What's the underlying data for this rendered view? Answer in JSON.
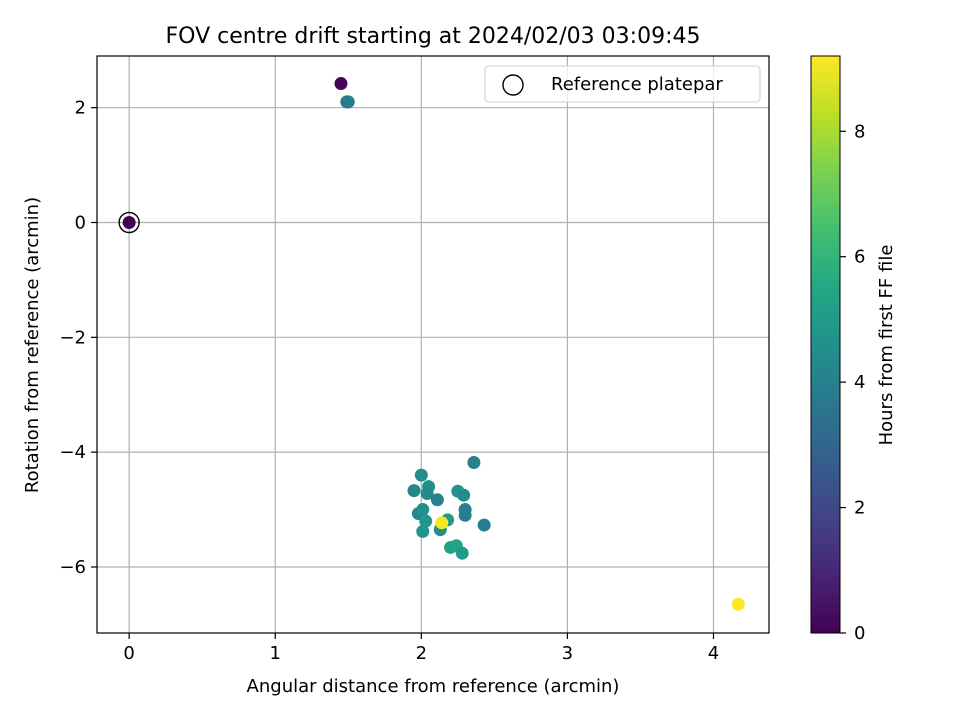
{
  "chart_data": {
    "type": "scatter",
    "title": "FOV centre drift starting at 2024/02/03 03:09:45",
    "xlabel": "Angular distance from reference (arcmin)",
    "ylabel": "Rotation from reference (arcmin)",
    "xlim": [
      -0.22,
      4.38
    ],
    "ylim": [
      -7.15,
      2.9
    ],
    "xticks": [
      0,
      1,
      2,
      3,
      4
    ],
    "yticks": [
      2,
      0,
      -2,
      -4,
      -6
    ],
    "xtick_labels": [
      "0",
      "1",
      "2",
      "3",
      "4"
    ],
    "ytick_labels": [
      "2",
      "0",
      "−2",
      "−4",
      "−6"
    ],
    "grid": true,
    "legend": {
      "position": "top-right",
      "entries": [
        "Reference platepar"
      ]
    },
    "colorbar": {
      "label": "Hours from first FF file",
      "min": 0,
      "max": 9.2,
      "ticks": [
        0,
        2,
        4,
        6,
        8
      ],
      "tick_labels": [
        "0",
        "2",
        "4",
        "6",
        "8"
      ],
      "colormap": "viridis"
    },
    "reference_point": {
      "x": 0,
      "y": 0
    },
    "points": [
      {
        "x": 0.0,
        "y": 0.0,
        "hours": 0.0
      },
      {
        "x": 1.45,
        "y": 2.42,
        "hours": 0.1
      },
      {
        "x": 1.49,
        "y": 2.1,
        "hours": 3.6
      },
      {
        "x": 1.5,
        "y": 2.1,
        "hours": 3.8
      },
      {
        "x": 2.36,
        "y": -4.18,
        "hours": 4.0
      },
      {
        "x": 2.43,
        "y": -5.27,
        "hours": 3.9
      },
      {
        "x": 1.95,
        "y": -4.67,
        "hours": 4.2
      },
      {
        "x": 2.0,
        "y": -4.4,
        "hours": 4.4
      },
      {
        "x": 2.05,
        "y": -4.6,
        "hours": 4.6
      },
      {
        "x": 2.04,
        "y": -4.72,
        "hours": 4.3
      },
      {
        "x": 2.11,
        "y": -4.83,
        "hours": 4.1
      },
      {
        "x": 2.25,
        "y": -4.68,
        "hours": 4.7
      },
      {
        "x": 2.29,
        "y": -4.75,
        "hours": 4.5
      },
      {
        "x": 1.98,
        "y": -5.07,
        "hours": 4.2
      },
      {
        "x": 2.01,
        "y": -5.0,
        "hours": 4.6
      },
      {
        "x": 2.03,
        "y": -5.2,
        "hours": 4.8
      },
      {
        "x": 2.3,
        "y": -5.0,
        "hours": 4.0
      },
      {
        "x": 2.3,
        "y": -5.1,
        "hours": 3.9
      },
      {
        "x": 2.18,
        "y": -5.18,
        "hours": 4.9
      },
      {
        "x": 2.13,
        "y": -5.35,
        "hours": 4.4
      },
      {
        "x": 2.01,
        "y": -5.38,
        "hours": 4.7
      },
      {
        "x": 2.2,
        "y": -5.66,
        "hours": 5.2
      },
      {
        "x": 2.24,
        "y": -5.63,
        "hours": 5.4
      },
      {
        "x": 2.28,
        "y": -5.76,
        "hours": 5.0
      },
      {
        "x": 2.14,
        "y": -5.23,
        "hours": 9.1
      },
      {
        "x": 4.17,
        "y": -6.65,
        "hours": 9.2
      }
    ]
  }
}
